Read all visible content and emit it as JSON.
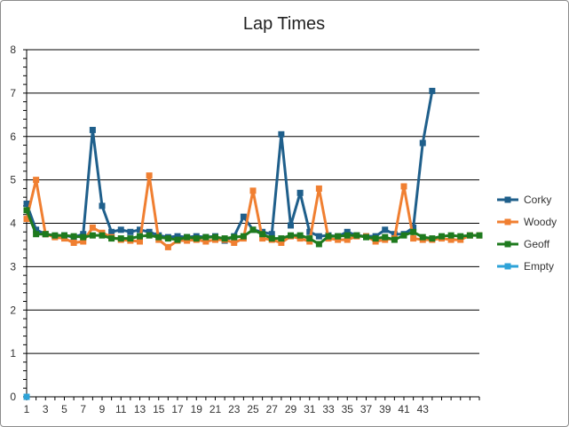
{
  "chart_data": {
    "type": "line",
    "title": "Lap Times",
    "xlabel": "",
    "ylabel": "",
    "ylim": [
      0,
      8
    ],
    "yticks": [
      "0",
      "1",
      "2",
      "3",
      "4",
      "5",
      "6",
      "7",
      "8"
    ],
    "xticks": [
      "1",
      "3",
      "5",
      "7",
      "9",
      "11",
      "13",
      "15",
      "17",
      "19",
      "21",
      "23",
      "25",
      "27",
      "29",
      "31",
      "33",
      "35",
      "37",
      "39",
      "41",
      "43"
    ],
    "grid": true,
    "legend_position": "right",
    "series": [
      {
        "name": "Corky",
        "color": "#1f5f8b",
        "x": [
          1,
          2,
          3,
          4,
          5,
          6,
          7,
          8,
          9,
          10,
          11,
          12,
          13,
          14,
          15,
          16,
          17,
          18,
          19,
          20,
          21,
          22,
          23,
          24,
          25,
          26,
          27,
          28,
          29,
          30,
          31,
          32,
          33,
          34,
          35,
          36,
          37,
          38,
          39,
          40,
          41,
          42,
          43,
          44
        ],
        "values": [
          4.45,
          3.85,
          3.75,
          3.7,
          3.72,
          3.68,
          3.75,
          6.15,
          4.4,
          3.8,
          3.85,
          3.8,
          3.85,
          3.8,
          3.72,
          3.68,
          3.7,
          3.68,
          3.7,
          3.68,
          3.7,
          3.6,
          3.7,
          4.15,
          3.85,
          3.8,
          3.75,
          6.05,
          3.95,
          4.7,
          3.8,
          3.7,
          3.72,
          3.7,
          3.8,
          3.72,
          3.7,
          3.7,
          3.85,
          3.75,
          3.75,
          3.9,
          5.85,
          7.05
        ]
      },
      {
        "name": "Woody",
        "color": "#f07f31",
        "x": [
          1,
          2,
          3,
          4,
          5,
          6,
          7,
          8,
          9,
          10,
          11,
          12,
          13,
          14,
          15,
          16,
          17,
          18,
          19,
          20,
          21,
          22,
          23,
          24,
          25,
          26,
          27,
          28,
          29,
          30,
          31,
          32,
          33,
          34,
          35,
          36,
          37,
          38,
          39,
          40,
          41,
          42,
          43,
          44,
          45,
          46,
          47,
          48,
          49
        ],
        "values": [
          4.1,
          5.0,
          3.75,
          3.68,
          3.65,
          3.55,
          3.58,
          3.9,
          3.78,
          3.68,
          3.62,
          3.6,
          3.58,
          5.1,
          3.62,
          3.45,
          3.6,
          3.6,
          3.62,
          3.58,
          3.62,
          3.62,
          3.55,
          3.65,
          4.75,
          3.65,
          3.62,
          3.55,
          3.7,
          3.65,
          3.58,
          4.8,
          3.65,
          3.62,
          3.62,
          3.7,
          3.7,
          3.58,
          3.62,
          3.65,
          4.85,
          3.65,
          3.62,
          3.62,
          3.65,
          3.62,
          3.62,
          3.72,
          3.72
        ]
      },
      {
        "name": "Geoff",
        "color": "#1e7a1e",
        "x": [
          1,
          2,
          3,
          4,
          5,
          6,
          7,
          8,
          9,
          10,
          11,
          12,
          13,
          14,
          15,
          16,
          17,
          18,
          19,
          20,
          21,
          22,
          23,
          24,
          25,
          26,
          27,
          28,
          29,
          30,
          31,
          32,
          33,
          34,
          35,
          36,
          37,
          38,
          39,
          40,
          41,
          42,
          43,
          44,
          45,
          46,
          47,
          48,
          49
        ],
        "values": [
          4.3,
          3.75,
          3.75,
          3.72,
          3.72,
          3.7,
          3.68,
          3.72,
          3.72,
          3.65,
          3.65,
          3.65,
          3.7,
          3.72,
          3.68,
          3.65,
          3.62,
          3.68,
          3.65,
          3.68,
          3.68,
          3.65,
          3.68,
          3.7,
          3.85,
          3.75,
          3.65,
          3.65,
          3.72,
          3.72,
          3.65,
          3.52,
          3.7,
          3.7,
          3.72,
          3.72,
          3.68,
          3.65,
          3.68,
          3.62,
          3.72,
          3.8,
          3.68,
          3.65,
          3.7,
          3.72,
          3.7,
          3.72,
          3.72
        ]
      },
      {
        "name": "Empty",
        "color": "#2ea3d8",
        "x": [
          1
        ],
        "values": [
          0
        ]
      }
    ]
  }
}
